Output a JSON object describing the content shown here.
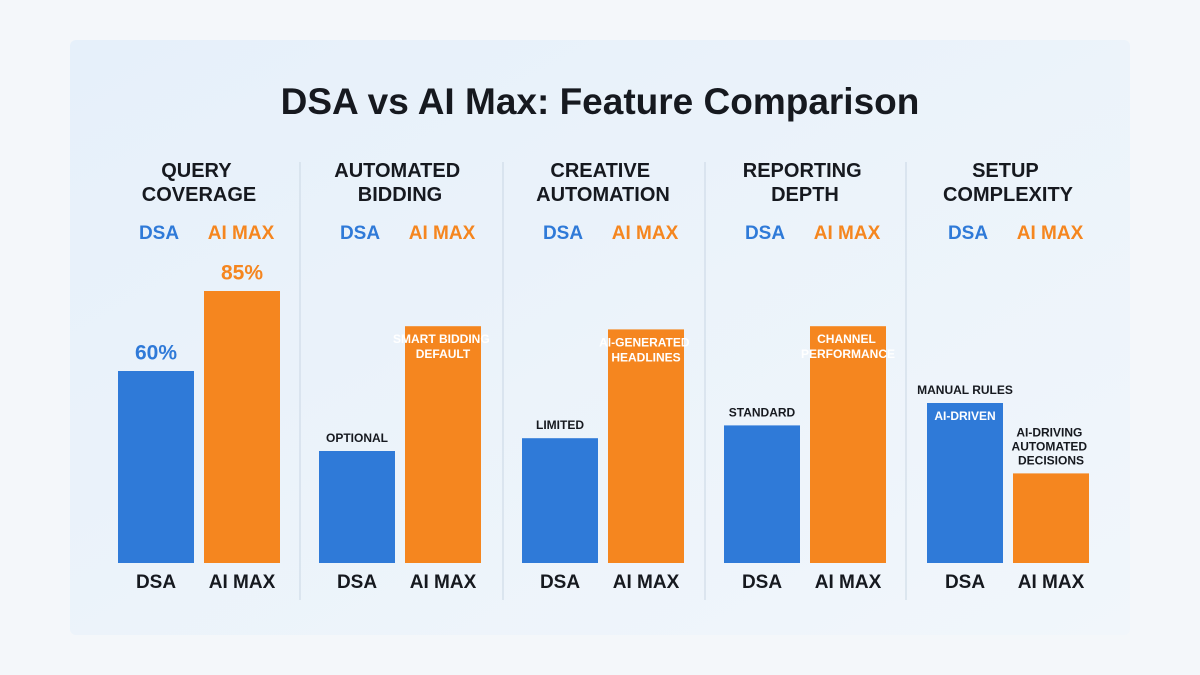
{
  "title": "DSA vs AI Max: Feature Comparison",
  "chart_data": [
    {
      "type": "bar",
      "title": "QUERY COVERAGE",
      "categories": [
        "DSA",
        "AI MAX"
      ],
      "colors": [
        "#2f7ad8",
        "#f5861f"
      ],
      "values": [
        60,
        85
      ],
      "value_labels": [
        "60%",
        "85%"
      ],
      "legend": true
    },
    {
      "type": "bar",
      "title": "AUTOMATED BIDDING",
      "categories": [
        "DSA",
        "AI MAX"
      ],
      "colors": [
        "#2f7ad8",
        "#f5861f"
      ],
      "values": [
        35,
        74
      ],
      "legend": true,
      "notes": [
        [
          {
            "text": "OPTIONAL",
            "position": "above"
          }
        ],
        [
          {
            "text": "SMART BIDDING DEFAULT",
            "position": "inside"
          }
        ]
      ]
    },
    {
      "type": "bar",
      "title": "CREATIVE AUTOMATION",
      "categories": [
        "DSA",
        "AI MAX"
      ],
      "colors": [
        "#2f7ad8",
        "#f5861f"
      ],
      "values": [
        39,
        73
      ],
      "legend": true,
      "notes": [
        [
          {
            "text": "LIMITED",
            "position": "above"
          }
        ],
        [
          {
            "text": "AI-GENERATED HEADLINES",
            "position": "inside"
          }
        ]
      ]
    },
    {
      "type": "bar",
      "title": "REPORTING DEPTH",
      "categories": [
        "DSA",
        "AI MAX"
      ],
      "colors": [
        "#2f7ad8",
        "#f5861f"
      ],
      "values": [
        43,
        74
      ],
      "legend": true,
      "notes": [
        [
          {
            "text": "STANDARD",
            "position": "above"
          }
        ],
        [
          {
            "text": "CHANNEL PERFORMANCE",
            "position": "inside"
          }
        ]
      ]
    },
    {
      "type": "bar",
      "title": "SETUP COMPLEXITY",
      "categories": [
        "DSA",
        "AI MAX"
      ],
      "colors": [
        "#2f7ad8",
        "#f5861f"
      ],
      "values": [
        50,
        28
      ],
      "legend": true,
      "notes": [
        [
          {
            "text": "MANUAL RULES",
            "position": "above"
          },
          {
            "text": "AI-DRIVEN",
            "position": "inside"
          }
        ],
        [
          {
            "text": "AI-DRIVING AUTOMATED DECISIONS",
            "position": "above"
          }
        ]
      ]
    }
  ]
}
